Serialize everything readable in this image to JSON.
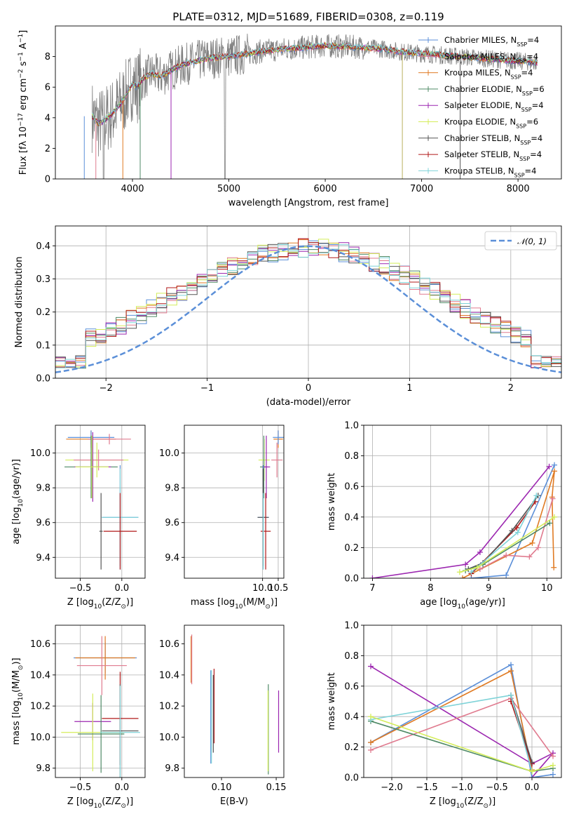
{
  "figure_title": "PLATE=0312, MJD=51689, FIBERID=0308, z=0.119",
  "chart_data": [
    {
      "id": "spectrum",
      "type": "line",
      "xlabel": "wavelength [Angstrom, rest frame]",
      "ylabel": "Flux [fλ 10⁻¹⁷ erg cm⁻² s⁻¹ A⁻¹]",
      "xlim": [
        3200,
        8450
      ],
      "ylim": [
        0,
        10
      ],
      "xticks": [
        4000,
        5000,
        6000,
        7000,
        8000
      ],
      "yticks": [
        0,
        2,
        4,
        6,
        8
      ],
      "grid": false,
      "legend_position": "right",
      "continuum": {
        "x": [
          3580,
          3650,
          3720,
          3800,
          3860,
          3920,
          3960,
          4000,
          4050,
          4100,
          4200,
          4300,
          4400,
          4500,
          4600,
          4800,
          5000,
          5200,
          5400,
          5600,
          5800,
          6000,
          6200,
          6400,
          6600,
          6800,
          7000,
          7200,
          7400,
          7600,
          7800,
          8000,
          8200
        ],
        "y": [
          4.1,
          3.6,
          3.9,
          4.3,
          4.8,
          5.3,
          5.8,
          6.2,
          6.0,
          6.5,
          6.9,
          6.7,
          7.1,
          7.4,
          7.6,
          7.9,
          8.0,
          8.2,
          8.4,
          8.5,
          8.6,
          8.7,
          8.65,
          8.6,
          8.5,
          8.3,
          8.2,
          8.1,
          8.0,
          7.9,
          7.8,
          7.7,
          7.6
        ]
      },
      "drops": [
        3500,
        3620,
        3900,
        4080,
        4400,
        6800,
        7400
      ],
      "series": [
        {
          "name": "Chabrier MILES, N_SSP=4",
          "color": "#5b8fd8"
        },
        {
          "name": "Salpeter MILES, N_SSP=4",
          "color": "#e07b8f"
        },
        {
          "name": "Kroupa MILES, N_SSP=4",
          "color": "#e07b24"
        },
        {
          "name": "Chabrier ELODIE, N_SSP=6",
          "color": "#4f8a66"
        },
        {
          "name": "Salpeter ELODIE, N_SSP=4",
          "color": "#9c27b0"
        },
        {
          "name": "Kroupa ELODIE, N_SSP=6",
          "color": "#d4ed5a"
        },
        {
          "name": "Chabrier STELIB, N_SSP=4",
          "color": "#555555"
        },
        {
          "name": "Salpeter STELIB, N_SSP=4",
          "color": "#b01a1a"
        },
        {
          "name": "Kroupa STELIB, N_SSP=4",
          "color": "#7fd3d8"
        }
      ]
    },
    {
      "id": "residuals",
      "type": "line",
      "xlabel": "(data-model)/error",
      "ylabel": "Normed distribution",
      "xlim": [
        -2.5,
        2.5
      ],
      "ylim": [
        0,
        0.46
      ],
      "xticks": [
        -2,
        -1,
        0,
        1,
        2
      ],
      "yticks": [
        0.0,
        0.1,
        0.2,
        0.3,
        0.4
      ],
      "grid": true,
      "legend_position": "top-right",
      "normal_curve": {
        "name": "𝒩(0, 1)",
        "color": "#5b8fd8"
      },
      "hist_bins": [
        -2.5,
        2.5,
        50
      ],
      "colors": [
        "#5b8fd8",
        "#e07b8f",
        "#e07b24",
        "#4f8a66",
        "#9c27b0",
        "#d4ed5a",
        "#555555",
        "#b01a1a",
        "#7fd3d8"
      ]
    },
    {
      "id": "age_vs_Z",
      "type": "scatter",
      "xlabel": "Z [log10(Z/Z⊙)]",
      "ylabel": "age  [log10(age/yr)]",
      "xlim": [
        -0.8,
        0.28
      ],
      "ylim": [
        9.28,
        10.16
      ],
      "xticks": [
        -0.5,
        0.0
      ],
      "yticks": [
        9.4,
        9.6,
        9.8,
        10.0
      ],
      "grid": true,
      "points": [
        {
          "x": -0.37,
          "y": 10.08,
          "xerr": 0.3,
          "yerr": 0.05,
          "color": "#e07b24"
        },
        {
          "x": -0.37,
          "y": 10.09,
          "xerr": 0.28,
          "yerr": 0.04,
          "color": "#5b8fd8"
        },
        {
          "x": -0.15,
          "y": 10.08,
          "xerr": 0.26,
          "yerr": 0.03,
          "color": "#e07b8f"
        },
        {
          "x": -0.3,
          "y": 9.96,
          "xerr": 0.38,
          "yerr": 0.1,
          "color": "#d4ed5a"
        },
        {
          "x": -0.28,
          "y": 9.96,
          "xerr": 0.3,
          "yerr": 0.06,
          "color": "#e07b8f"
        },
        {
          "x": -0.37,
          "y": 9.92,
          "xerr": 0.32,
          "yerr": 0.18,
          "color": "#4f8a66"
        },
        {
          "x": -0.35,
          "y": 9.92,
          "xerr": 0.22,
          "yerr": 0.2,
          "color": "#9c27b0"
        },
        {
          "x": -0.36,
          "y": 9.92,
          "xerr": 0.2,
          "yerr": 0.18,
          "color": "#d4ed5a"
        },
        {
          "x": -0.02,
          "y": 9.63,
          "xerr": 0.22,
          "yerr": 0.3,
          "color": "#5b8fd8"
        },
        {
          "x": -0.02,
          "y": 9.63,
          "xerr": 0.22,
          "yerr": 0.28,
          "color": "#7fd3d8"
        },
        {
          "x": -0.02,
          "y": 9.55,
          "xerr": 0.2,
          "yerr": 0.22,
          "color": "#b01a1a"
        },
        {
          "x": -0.25,
          "y": 9.55,
          "xerr": 0.02,
          "yerr": 0.22,
          "color": "#555555"
        }
      ]
    },
    {
      "id": "age_vs_mass",
      "type": "scatter",
      "xlabel": "mass [log10(M/M⊙)]",
      "ylabel": "",
      "xlim": [
        7.5,
        10.68
      ],
      "ylim": [
        9.28,
        10.16
      ],
      "xticks": [
        10.0,
        10.5
      ],
      "yticks": [
        9.4,
        9.6,
        9.8,
        10.0
      ],
      "grid": true,
      "points": [
        {
          "x": 10.5,
          "y": 10.08,
          "xerr": 0.15,
          "yerr": 0.05,
          "color": "#e07b24"
        },
        {
          "x": 10.5,
          "y": 10.09,
          "xerr": 0.17,
          "yerr": 0.04,
          "color": "#5b8fd8"
        },
        {
          "x": 10.46,
          "y": 9.96,
          "xerr": 0.18,
          "yerr": 0.1,
          "color": "#e07b8f"
        },
        {
          "x": 10.05,
          "y": 9.96,
          "xerr": 0.18,
          "yerr": 0.12,
          "color": "#d4ed5a"
        },
        {
          "x": 10.04,
          "y": 9.92,
          "xerr": 0.12,
          "yerr": 0.18,
          "color": "#4f8a66"
        },
        {
          "x": 10.12,
          "y": 9.92,
          "xerr": 0.12,
          "yerr": 0.18,
          "color": "#9c27b0"
        },
        {
          "x": 10.02,
          "y": 9.63,
          "xerr": 0.18,
          "yerr": 0.3,
          "color": "#5b8fd8"
        },
        {
          "x": 10.02,
          "y": 9.63,
          "xerr": 0.18,
          "yerr": 0.28,
          "color": "#555555"
        },
        {
          "x": 10.1,
          "y": 9.55,
          "xerr": 0.16,
          "yerr": 0.22,
          "color": "#b01a1a"
        },
        {
          "x": 10.02,
          "y": 9.55,
          "xerr": 0.02,
          "yerr": 0.22,
          "color": "#7fd3d8"
        }
      ]
    },
    {
      "id": "weight_vs_age",
      "type": "line",
      "xlabel": "age  [log10(age/yr)]",
      "ylabel": "mass weight",
      "xlim": [
        6.85,
        10.25
      ],
      "ylim": [
        0,
        1.0
      ],
      "xticks": [
        7,
        8,
        9,
        10
      ],
      "yticks": [
        0.0,
        0.2,
        0.4,
        0.6,
        0.8,
        1.0
      ],
      "grid": true,
      "series": [
        {
          "color": "#9c27b0",
          "x": [
            7.0,
            8.6,
            8.85,
            10.04
          ],
          "y": [
            0.0,
            0.09,
            0.17,
            0.73
          ]
        },
        {
          "color": "#5b8fd8",
          "x": [
            8.7,
            9.3,
            10.13
          ],
          "y": [
            0.0,
            0.02,
            0.74
          ]
        },
        {
          "color": "#e07b24",
          "x": [
            8.55,
            9.75,
            10.13,
            10.09,
            10.12
          ],
          "y": [
            0.0,
            0.23,
            0.7,
            0.53,
            0.07
          ]
        },
        {
          "color": "#e07b8f",
          "x": [
            8.85,
            9.3,
            9.7,
            9.85,
            10.1
          ],
          "y": [
            0.06,
            0.15,
            0.14,
            0.2,
            0.52
          ]
        },
        {
          "color": "#b01a1a",
          "x": [
            8.7,
            9.48,
            9.8
          ],
          "y": [
            0.03,
            0.33,
            0.5
          ]
        },
        {
          "color": "#555555",
          "x": [
            8.65,
            8.9,
            9.4,
            9.85
          ],
          "y": [
            0.06,
            0.1,
            0.31,
            0.54
          ]
        },
        {
          "color": "#4f8a66",
          "x": [
            8.6,
            8.9,
            10.05
          ],
          "y": [
            0.05,
            0.09,
            0.36
          ]
        },
        {
          "color": "#7fd3d8",
          "x": [
            8.7,
            9.5,
            9.82
          ],
          "y": [
            0.04,
            0.3,
            0.54
          ]
        },
        {
          "color": "#d4ed5a",
          "x": [
            8.5,
            8.8,
            10.13
          ],
          "y": [
            0.04,
            0.07,
            0.4
          ]
        }
      ]
    },
    {
      "id": "mass_vs_Z",
      "type": "scatter",
      "xlabel": "Z [log10(Z/Z⊙)]",
      "ylabel": "mass [log10(M/M⊙)]",
      "xlim": [
        -0.8,
        0.28
      ],
      "ylim": [
        9.74,
        10.72
      ],
      "xticks": [
        -0.5,
        0.0
      ],
      "yticks": [
        9.8,
        10.0,
        10.2,
        10.4,
        10.6
      ],
      "grid": true,
      "points": [
        {
          "x": -0.2,
          "y": 10.51,
          "xerr": 0.38,
          "yerr": 0.1,
          "color": "#5b8fd8"
        },
        {
          "x": -0.2,
          "y": 10.51,
          "xerr": 0.36,
          "yerr": 0.14,
          "color": "#e07b24"
        },
        {
          "x": -0.24,
          "y": 10.46,
          "xerr": 0.3,
          "yerr": 0.19,
          "color": "#e07b8f"
        },
        {
          "x": -0.02,
          "y": 10.12,
          "xerr": 0.22,
          "yerr": 0.3,
          "color": "#b01a1a"
        },
        {
          "x": -0.02,
          "y": 10.04,
          "xerr": 0.22,
          "yerr": 0.3,
          "color": "#555555"
        },
        {
          "x": -0.35,
          "y": 10.1,
          "xerr": 0.22,
          "yerr": 0.12,
          "color": "#9c27b0"
        },
        {
          "x": -0.35,
          "y": 10.03,
          "xerr": 0.38,
          "yerr": 0.25,
          "color": "#d4ed5a"
        },
        {
          "x": -0.25,
          "y": 10.02,
          "xerr": 0.28,
          "yerr": 0.25,
          "color": "#4f8a66"
        },
        {
          "x": -0.02,
          "y": 10.03,
          "xerr": 0.24,
          "yerr": 0.3,
          "color": "#7fd3d8"
        }
      ]
    },
    {
      "id": "mass_vs_ebv",
      "type": "scatter",
      "xlabel": "E(B-V)",
      "ylabel": "",
      "xlim": [
        0.066,
        0.157
      ],
      "ylim": [
        9.74,
        10.72
      ],
      "xticks": [
        0.1,
        0.15
      ],
      "yticks": [
        9.8,
        10.0,
        10.2,
        10.4,
        10.6
      ],
      "grid": false,
      "points": [
        {
          "x": 0.0722,
          "y": 10.5,
          "yerr": 0.15,
          "color": "#e07b24"
        },
        {
          "x": 0.0728,
          "y": 10.5,
          "yerr": 0.16,
          "color": "#e07b8f"
        },
        {
          "x": 0.0902,
          "y": 10.13,
          "yerr": 0.3,
          "color": "#5b8fd8"
        },
        {
          "x": 0.0908,
          "y": 10.13,
          "yerr": 0.3,
          "color": "#7fd3d8"
        },
        {
          "x": 0.0932,
          "y": 10.2,
          "yerr": 0.24,
          "color": "#b01a1a"
        },
        {
          "x": 0.0925,
          "y": 10.15,
          "yerr": 0.25,
          "color": "#555555"
        },
        {
          "x": 0.1428,
          "y": 10.05,
          "yerr": 0.29,
          "color": "#4f8a66"
        },
        {
          "x": 0.1425,
          "y": 10.04,
          "yerr": 0.26,
          "color": "#d4ed5a"
        },
        {
          "x": 0.1522,
          "y": 10.1,
          "yerr": 0.2,
          "color": "#9c27b0"
        }
      ]
    },
    {
      "id": "weight_vs_Z",
      "type": "line",
      "xlabel": "Z [log10(Z/Z⊙)]",
      "ylabel": "mass weight",
      "xlim": [
        -2.4,
        0.42
      ],
      "ylim": [
        0,
        1.0
      ],
      "xticks": [
        -2.0,
        -1.5,
        -1.0,
        -0.5,
        0.0
      ],
      "yticks": [
        0.0,
        0.2,
        0.4,
        0.6,
        0.8,
        1.0
      ],
      "grid": true,
      "series": [
        {
          "color": "#9c27b0",
          "x": [
            -2.3,
            0.0,
            0.3,
            0.0
          ],
          "y": [
            0.73,
            0.09,
            0.16,
            0.0
          ]
        },
        {
          "color": "#5b8fd8",
          "x": [
            -2.3,
            -0.3,
            0.0,
            0.3
          ],
          "y": [
            0.23,
            0.74,
            0.0,
            0.02
          ]
        },
        {
          "color": "#e07b24",
          "x": [
            -2.3,
            -0.3,
            0.0
          ],
          "y": [
            0.23,
            0.7,
            0.05
          ]
        },
        {
          "color": "#e07b8f",
          "x": [
            -2.3,
            -0.3,
            0.3
          ],
          "y": [
            0.18,
            0.52,
            0.14
          ]
        },
        {
          "color": "#b01a1a",
          "x": [
            -0.3,
            0.0
          ],
          "y": [
            0.5,
            0.09
          ]
        },
        {
          "color": "#555555",
          "x": [
            -0.3,
            0.0
          ],
          "y": [
            0.54,
            0.1
          ]
        },
        {
          "color": "#4f8a66",
          "x": [
            -2.3,
            0.0,
            0.3
          ],
          "y": [
            0.37,
            0.04,
            0.06
          ]
        },
        {
          "color": "#7fd3d8",
          "x": [
            -2.3,
            -0.3,
            0.0
          ],
          "y": [
            0.38,
            0.54,
            0.04
          ]
        },
        {
          "color": "#d4ed5a",
          "x": [
            -2.3,
            0.0,
            0.3
          ],
          "y": [
            0.4,
            0.04,
            0.08
          ]
        }
      ]
    }
  ]
}
